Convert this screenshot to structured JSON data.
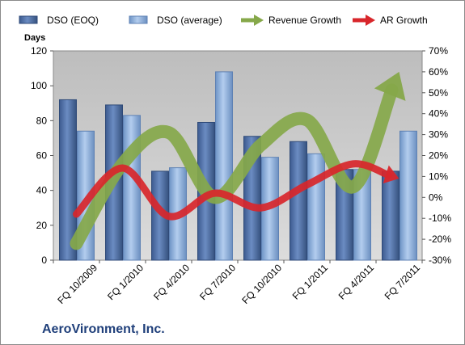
{
  "company": "AeroVironment, Inc.",
  "chart_data": {
    "type": "bar",
    "categories": [
      "FQ 10/2009",
      "FQ 1/2010",
      "FQ 4/2010",
      "FQ 7/2010",
      "FQ 10/2010",
      "FQ 1/2011",
      "FQ 4/2011",
      "FQ 7/2011"
    ],
    "series": [
      {
        "name": "DSO (EOQ)",
        "type": "bar",
        "axis": "left",
        "color": "#4f6fa3",
        "values": [
          92,
          89,
          51,
          79,
          71,
          68,
          52,
          51
        ]
      },
      {
        "name": "DSO (average)",
        "type": "bar",
        "axis": "left",
        "color": "#8fb0d8",
        "values": [
          74,
          83,
          53,
          108,
          59,
          61,
          52,
          74
        ]
      },
      {
        "name": "Revenue Growth",
        "type": "line",
        "axis": "right",
        "color": "#86a84a",
        "values": [
          -22,
          16,
          31,
          0,
          25,
          37,
          5,
          60
        ]
      },
      {
        "name": "AR Growth",
        "type": "line",
        "axis": "right",
        "color": "#d8262b",
        "values": [
          -8,
          14,
          -9,
          2,
          -5,
          6,
          16,
          9
        ]
      }
    ],
    "ylabel": "Days",
    "ylim": [
      0,
      120
    ],
    "yticks": [
      "0",
      "20",
      "40",
      "60",
      "80",
      "100",
      "120"
    ],
    "y2lim": [
      -30,
      70
    ],
    "y2ticks": [
      "-30%",
      "-20%",
      "-10%",
      "0%",
      "10%",
      "20%",
      "30%",
      "40%",
      "50%",
      "60%",
      "70%"
    ],
    "legend_position": "top",
    "grid": false
  }
}
